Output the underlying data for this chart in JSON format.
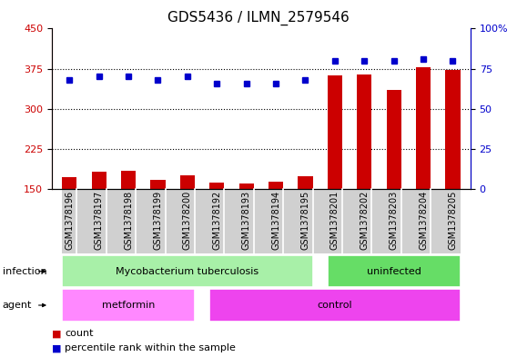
{
  "title": "GDS5436 / ILMN_2579546",
  "samples": [
    "GSM1378196",
    "GSM1378197",
    "GSM1378198",
    "GSM1378199",
    "GSM1378200",
    "GSM1378192",
    "GSM1378193",
    "GSM1378194",
    "GSM1378195",
    "GSM1378201",
    "GSM1378202",
    "GSM1378203",
    "GSM1378204",
    "GSM1378205"
  ],
  "counts": [
    172,
    183,
    185,
    168,
    176,
    163,
    160,
    164,
    174,
    362,
    365,
    335,
    378,
    372
  ],
  "percentiles": [
    68,
    70,
    70,
    68,
    70,
    66,
    66,
    66,
    68,
    80,
    80,
    80,
    81,
    80
  ],
  "ylim_left": [
    150,
    450
  ],
  "ylim_right": [
    0,
    100
  ],
  "yticks_left": [
    150,
    225,
    300,
    375,
    450
  ],
  "yticks_right": [
    0,
    25,
    50,
    75,
    100
  ],
  "bar_color": "#cc0000",
  "dot_color": "#0000cc",
  "infection_groups": [
    {
      "label": "Mycobacterium tuberculosis",
      "start": 0,
      "end": 8,
      "color": "#a8f0a8"
    },
    {
      "label": "uninfected",
      "start": 9,
      "end": 13,
      "color": "#66dd66"
    }
  ],
  "agent_groups": [
    {
      "label": "metformin",
      "start": 0,
      "end": 4,
      "color": "#ff88ff"
    },
    {
      "label": "control",
      "start": 5,
      "end": 13,
      "color": "#ee44ee"
    }
  ],
  "infection_label": "infection",
  "agent_label": "agent",
  "legend_count_label": "count",
  "legend_pct_label": "percentile rank within the sample",
  "title_fontsize": 11,
  "tick_fontsize": 7,
  "bar_width": 0.5
}
